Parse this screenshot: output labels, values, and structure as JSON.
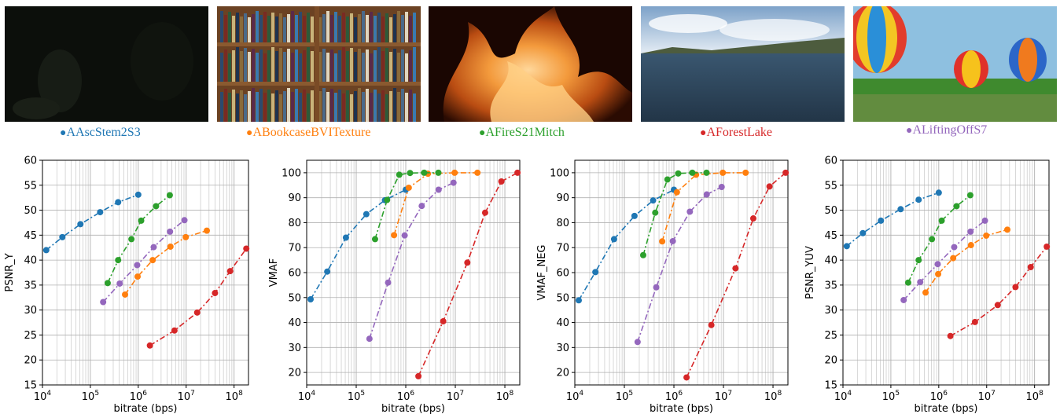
{
  "thumbnails": [
    {
      "name": "AAscStem2S3",
      "color": "#1f77b4"
    },
    {
      "name": "ABookcaseBVITexture",
      "color": "#ff7f0e"
    },
    {
      "name": "AFireS21Mitch",
      "color": "#2ca02c"
    },
    {
      "name": "AForestLake",
      "color": "#d62728"
    },
    {
      "name": "ALiftingOffS7",
      "color": "#9467bd"
    }
  ],
  "captions": {
    "c0": "AAscStem2S3",
    "c1": "ABookcaseBVITexture",
    "c2": "AFireS21Mitch",
    "c3": "AForestLake",
    "c4": "ALiftingOffS7"
  },
  "chart_data": [
    {
      "type": "line",
      "xlabel": "bitrate (bps)",
      "ylabel": "PSNR_Y",
      "xscale": "log",
      "xlim": [
        10000,
        200000000
      ],
      "ylim": [
        15,
        60
      ],
      "yticks": [
        15,
        20,
        25,
        30,
        35,
        40,
        45,
        50,
        55,
        60
      ],
      "grid": true,
      "series": [
        {
          "name": "AAscStem2S3",
          "color": "#1f77b4",
          "x": [
            12000,
            26000,
            62000,
            160000,
            380000,
            1000000
          ],
          "y": [
            42,
            44.6,
            47.2,
            49.6,
            51.6,
            53.1
          ]
        },
        {
          "name": "ABookcaseBVITexture",
          "color": "#ff7f0e",
          "x": [
            530000,
            970000,
            2000000,
            4700000,
            9800000,
            27000000
          ],
          "y": [
            33.1,
            36.7,
            40,
            42.7,
            44.6,
            45.9
          ]
        },
        {
          "name": "AFireS21Mitch",
          "color": "#2ca02c",
          "x": [
            230000,
            380000,
            720000,
            1150000,
            2350000,
            4550000
          ],
          "y": [
            35.4,
            40,
            44.2,
            47.9,
            50.8,
            53
          ]
        },
        {
          "name": "AForestLake",
          "color": "#d62728",
          "x": [
            1750000,
            5700000,
            17000000,
            40000000,
            83000000,
            180000000
          ],
          "y": [
            22.9,
            25.9,
            29.5,
            33.4,
            37.8,
            42.3
          ]
        },
        {
          "name": "ALiftingOffS7",
          "color": "#9467bd",
          "x": [
            185000,
            410000,
            950000,
            2100000,
            4600000,
            9200000
          ],
          "y": [
            31.6,
            35.3,
            39,
            42.6,
            45.7,
            48
          ]
        }
      ]
    },
    {
      "type": "line",
      "xlabel": "bitrate (bps)",
      "ylabel": "VMAF",
      "xscale": "log",
      "xlim": [
        10000,
        200000000
      ],
      "ylim": [
        15,
        105
      ],
      "yticks": [
        20,
        30,
        40,
        50,
        60,
        70,
        80,
        90,
        100
      ],
      "grid": true,
      "series": [
        {
          "name": "AAscStem2S3",
          "color": "#1f77b4",
          "x": [
            12000,
            26000,
            62000,
            160000,
            380000,
            1000000
          ],
          "y": [
            49.3,
            60.4,
            74,
            83.4,
            89,
            93.2
          ]
        },
        {
          "name": "ABookcaseBVITexture",
          "color": "#ff7f0e",
          "x": [
            580000,
            1150000,
            2800000,
            9700000,
            28000000
          ],
          "y": [
            75,
            94,
            99.6,
            100,
            100
          ]
        },
        {
          "name": "AFireS21Mitch",
          "color": "#2ca02c",
          "x": [
            240000,
            420000,
            740000,
            1220000,
            2350000,
            4550000
          ],
          "y": [
            73.4,
            89.1,
            99.2,
            99.9,
            100,
            100
          ]
        },
        {
          "name": "AForestLake",
          "color": "#d62728",
          "x": [
            1800000,
            5700000,
            17500000,
            40000000,
            85000000,
            180000000
          ],
          "y": [
            18.5,
            40.5,
            64,
            84,
            96.5,
            100
          ]
        },
        {
          "name": "ALiftingOffS7",
          "color": "#9467bd",
          "x": [
            185000,
            440000,
            950000,
            2100000,
            4600000,
            9200000
          ],
          "y": [
            33.5,
            56,
            74.9,
            86.7,
            93.2,
            96
          ]
        }
      ]
    },
    {
      "type": "line",
      "xlabel": "bitrate (bps)",
      "ylabel": "VMAF_NEG",
      "xscale": "log",
      "xlim": [
        10000,
        200000000
      ],
      "ylim": [
        15,
        105
      ],
      "yticks": [
        20,
        30,
        40,
        50,
        60,
        70,
        80,
        90,
        100
      ],
      "grid": true,
      "series": [
        {
          "name": "AAscStem2S3",
          "color": "#1f77b4",
          "x": [
            12000,
            26000,
            62000,
            160000,
            380000,
            1000000
          ],
          "y": [
            48.9,
            60.2,
            73.4,
            82.7,
            88.9,
            93.2
          ]
        },
        {
          "name": "ABookcaseBVITexture",
          "color": "#ff7f0e",
          "x": [
            580000,
            1150000,
            2800000,
            9700000,
            28000000
          ],
          "y": [
            72.5,
            92.2,
            99.2,
            100,
            100
          ]
        },
        {
          "name": "AFireS21Mitch",
          "color": "#2ca02c",
          "x": [
            240000,
            420000,
            740000,
            1220000,
            2350000,
            4550000
          ],
          "y": [
            67,
            84,
            97.3,
            99.7,
            100,
            100
          ]
        },
        {
          "name": "AForestLake",
          "color": "#d62728",
          "x": [
            1800000,
            5700000,
            17500000,
            40000000,
            85000000,
            180000000
          ],
          "y": [
            18,
            39,
            61.7,
            81.7,
            94.5,
            100
          ]
        },
        {
          "name": "ALiftingOffS7",
          "color": "#9467bd",
          "x": [
            185000,
            440000,
            950000,
            2100000,
            4600000,
            9200000
          ],
          "y": [
            32.2,
            54.1,
            72.6,
            84.4,
            91.3,
            94.3
          ]
        }
      ]
    },
    {
      "type": "line",
      "xlabel": "bitrate (bps)",
      "ylabel": "PSNR_YUV",
      "xscale": "log",
      "xlim": [
        10000,
        200000000
      ],
      "ylim": [
        15,
        60
      ],
      "yticks": [
        15,
        20,
        25,
        30,
        35,
        40,
        45,
        50,
        55,
        60
      ],
      "grid": true,
      "series": [
        {
          "name": "AAscStem2S3",
          "color": "#1f77b4",
          "x": [
            12000,
            26000,
            62000,
            160000,
            380000,
            1000000
          ],
          "y": [
            42.8,
            45.4,
            47.9,
            50.2,
            52.1,
            53.5
          ]
        },
        {
          "name": "ABookcaseBVITexture",
          "color": "#ff7f0e",
          "x": [
            530000,
            970000,
            2000000,
            4700000,
            9800000,
            27000000
          ],
          "y": [
            33.5,
            37.2,
            40.4,
            43,
            44.9,
            46.1
          ]
        },
        {
          "name": "AFireS21Mitch",
          "color": "#2ca02c",
          "x": [
            230000,
            380000,
            720000,
            1150000,
            2350000,
            4550000
          ],
          "y": [
            35.5,
            40,
            44.2,
            47.9,
            50.8,
            53
          ]
        },
        {
          "name": "AForestLake",
          "color": "#d62728",
          "x": [
            1750000,
            5700000,
            17000000,
            40000000,
            83000000,
            180000000
          ],
          "y": [
            24.8,
            27.6,
            31,
            34.6,
            38.6,
            42.7
          ]
        },
        {
          "name": "ALiftingOffS7",
          "color": "#9467bd",
          "x": [
            185000,
            410000,
            950000,
            2100000,
            4600000,
            9200000
          ],
          "y": [
            32,
            35.6,
            39.2,
            42.6,
            45.7,
            47.9
          ]
        }
      ]
    }
  ]
}
